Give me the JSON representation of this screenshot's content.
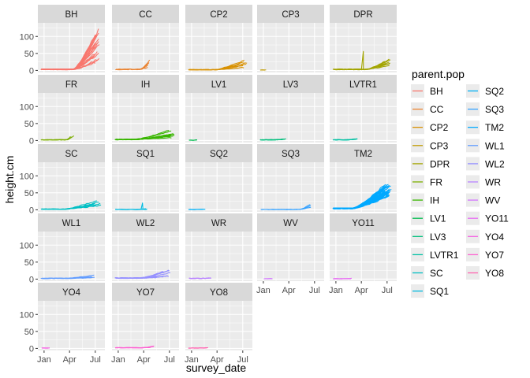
{
  "chart_data": {
    "type": "line",
    "layout": "facet_wrap",
    "ncol": 5,
    "xlabel": "survey_date",
    "ylabel": "height.cm",
    "ylim": [
      -6,
      140
    ],
    "yticks": [
      0,
      50,
      100
    ],
    "xlim": [
      "2022-12-10",
      "2023-08-04"
    ],
    "xticks": [
      {
        "date": "2023-01-01",
        "label": "Jan"
      },
      {
        "date": "2023-04-01",
        "label": "Apr"
      },
      {
        "date": "2023-07-01",
        "label": "Jul"
      }
    ],
    "grid": true,
    "background": "#ebebeb",
    "strip_fill": "#d9d9d9",
    "legend": {
      "title": "parent.pop",
      "placement": "right",
      "columns": 2
    },
    "panels": [
      {
        "name": "BH",
        "color": "#F8766D",
        "n_lines": 20,
        "start": "2022-12-20",
        "end": "2023-07-22",
        "base": 3,
        "peak_range": [
          20,
          125
        ],
        "rise_start": "2023-04-15",
        "noise": 7
      },
      {
        "name": "CC",
        "color": "#EA8331",
        "n_lines": 5,
        "start": "2022-12-20",
        "end": "2023-04-26",
        "base": 3,
        "peak_range": [
          6,
          36
        ],
        "rise_start": "2023-03-20",
        "noise": 3
      },
      {
        "name": "CP2",
        "color": "#D89000",
        "n_lines": 6,
        "start": "2022-12-20",
        "end": "2023-07-28",
        "base": 2,
        "peak_range": [
          6,
          32
        ],
        "rise_start": "2023-03-25",
        "noise": 3
      },
      {
        "name": "CP3",
        "color": "#C09B00",
        "n_lines": 3,
        "start": "2022-12-20",
        "end": "2023-01-15",
        "base": 1,
        "peak_range": [
          1,
          3
        ],
        "rise_start": "2023-01-05",
        "noise": 0.5
      },
      {
        "name": "DPR",
        "color": "#A3A500",
        "n_lines": 8,
        "start": "2022-12-20",
        "end": "2023-07-20",
        "base": 3,
        "peak_range": [
          15,
          42
        ],
        "rise_start": "2023-04-20",
        "noise": 3,
        "spike": {
          "date": "2023-04-08",
          "value": 56
        }
      },
      {
        "name": "FR",
        "color": "#7CAE00",
        "n_lines": 4,
        "start": "2022-12-20",
        "end": "2023-04-20",
        "base": 2,
        "peak_range": [
          4,
          17
        ],
        "rise_start": "2023-03-25",
        "noise": 2
      },
      {
        "name": "IH",
        "color": "#39B600",
        "n_lines": 12,
        "start": "2022-12-20",
        "end": "2023-07-28",
        "base": 3,
        "peak_range": [
          8,
          33
        ],
        "rise_start": "2023-03-01",
        "noise": 2
      },
      {
        "name": "LV1",
        "color": "#00BB4E",
        "n_lines": 3,
        "start": "2022-12-20",
        "end": "2023-01-25",
        "base": 1,
        "peak_range": [
          1,
          3
        ],
        "rise_start": "2023-01-10",
        "noise": 0.5
      },
      {
        "name": "LV3",
        "color": "#00BF7D",
        "n_lines": 6,
        "start": "2022-12-20",
        "end": "2023-03-25",
        "base": 2,
        "peak_range": [
          3,
          6
        ],
        "rise_start": "2023-02-15",
        "noise": 1
      },
      {
        "name": "LVTR1",
        "color": "#00C1A3",
        "n_lines": 5,
        "start": "2022-12-20",
        "end": "2023-03-20",
        "base": 2,
        "peak_range": [
          3,
          7
        ],
        "rise_start": "2023-02-15",
        "noise": 1
      },
      {
        "name": "SC",
        "color": "#00BFC4",
        "n_lines": 6,
        "start": "2022-12-20",
        "end": "2023-07-28",
        "base": 2,
        "peak_range": [
          10,
          58
        ],
        "rise_start": "2023-03-15",
        "noise": 4
      },
      {
        "name": "SQ1",
        "color": "#00BAE0",
        "n_lines": 4,
        "start": "2022-12-20",
        "end": "2023-04-25",
        "base": 1,
        "peak_range": [
          1,
          4
        ],
        "rise_start": "2023-03-10",
        "noise": 1,
        "spike": {
          "date": "2023-03-28",
          "value": 20
        }
      },
      {
        "name": "SQ2",
        "color": "#00B0F6",
        "n_lines": 3,
        "start": "2022-12-20",
        "end": "2023-02-20",
        "base": 1,
        "peak_range": [
          1,
          3
        ],
        "rise_start": "2023-02-01",
        "noise": 0.5
      },
      {
        "name": "SQ3",
        "color": "#35A2FF",
        "n_lines": 3,
        "start": "2022-12-20",
        "end": "2023-07-10",
        "base": 1,
        "peak_range": [
          2,
          37
        ],
        "rise_start": "2023-05-10",
        "noise": 2
      },
      {
        "name": "TM2",
        "color": "#00A9FF",
        "n_lines": 30,
        "start": "2022-12-20",
        "end": "2023-07-22",
        "base": 4,
        "peak_range": [
          40,
          78
        ],
        "rise_start": "2023-03-01",
        "noise": 6
      },
      {
        "name": "WL1",
        "color": "#619CFF",
        "n_lines": 5,
        "start": "2022-12-20",
        "end": "2023-07-05",
        "base": 2,
        "peak_range": [
          4,
          12
        ],
        "rise_start": "2023-03-15",
        "noise": 1.5
      },
      {
        "name": "WL2",
        "color": "#9590FF",
        "n_lines": 8,
        "start": "2022-12-20",
        "end": "2023-07-05",
        "base": 3,
        "peak_range": [
          6,
          32
        ],
        "rise_start": "2023-03-20",
        "noise": 3
      },
      {
        "name": "WR",
        "color": "#B983FF",
        "n_lines": 4,
        "start": "2022-12-20",
        "end": "2023-03-15",
        "base": 2,
        "peak_range": [
          2,
          5
        ],
        "rise_start": "2023-02-15",
        "noise": 1
      },
      {
        "name": "WV",
        "color": "#D376FF",
        "n_lines": 2,
        "start": "2023-01-01",
        "end": "2023-02-10",
        "base": 1,
        "peak_range": [
          1,
          2
        ],
        "rise_start": "2023-01-20",
        "noise": 0.5
      },
      {
        "name": "YO11",
        "color": "#E76BF3",
        "n_lines": 4,
        "start": "2022-12-20",
        "end": "2023-03-01",
        "base": 1,
        "peak_range": [
          1,
          3
        ],
        "rise_start": "2023-02-01",
        "noise": 0.5
      },
      {
        "name": "YO4",
        "color": "#F564E3",
        "n_lines": 3,
        "start": "2022-12-20",
        "end": "2023-01-25",
        "base": 1,
        "peak_range": [
          1,
          3
        ],
        "rise_start": "2023-01-10",
        "noise": 0.5
      },
      {
        "name": "YO7",
        "color": "#FD61D1",
        "n_lines": 4,
        "start": "2022-12-20",
        "end": "2023-05-15",
        "base": 2,
        "peak_range": [
          3,
          9
        ],
        "rise_start": "2023-04-01",
        "noise": 1
      },
      {
        "name": "YO8",
        "color": "#FF64B0",
        "n_lines": 3,
        "start": "2022-12-20",
        "end": "2023-03-01",
        "base": 1,
        "peak_range": [
          1,
          3
        ],
        "rise_start": "2023-02-10",
        "noise": 0.5
      }
    ]
  }
}
